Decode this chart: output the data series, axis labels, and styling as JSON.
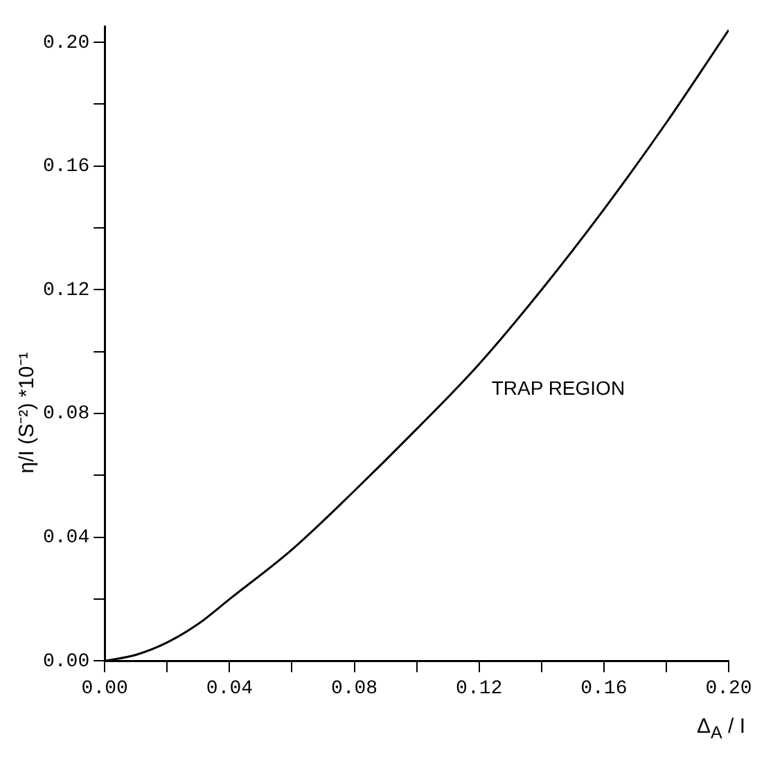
{
  "chart_data": {
    "type": "line",
    "xlabel": "Δ$_{A}$ / I",
    "ylabel": "η/I  (S⁻²)  *10⁻¹",
    "annotations": [
      "TRAP REGION"
    ],
    "x": [
      0,
      0.01,
      0.02,
      0.03,
      0.04,
      0.06,
      0.08,
      0.1,
      0.12,
      0.14,
      0.16,
      0.18,
      0.2
    ],
    "series": [
      {
        "color": "#000000",
        "values": [
          0,
          0.002,
          0.006,
          0.012,
          0.02,
          0.036,
          0.055,
          0.075,
          0.096,
          0.12,
          0.146,
          0.174,
          0.204
        ]
      }
    ],
    "xlim": [
      0,
      0.2
    ],
    "ylim": [
      0,
      0.205
    ],
    "xticks": [
      {
        "value": 0,
        "label": "0.00"
      },
      {
        "value": 0.02,
        "label": null
      },
      0.04,
      {
        "value": 0.06,
        "label": null
      },
      0.08,
      {
        "value": 0.1,
        "label": null
      },
      0.12,
      {
        "value": 0.14,
        "label": null
      },
      0.16,
      {
        "value": 0.18,
        "label": null
      },
      {
        "value": 0.2,
        "label": "0.20"
      }
    ],
    "yticks": [
      {
        "value": 0,
        "label": "0.00"
      },
      {
        "value": 0.02,
        "label": null
      },
      0.04,
      {
        "value": 0.06,
        "label": null
      },
      0.08,
      {
        "value": 0.1,
        "label": null
      },
      0.12,
      {
        "value": 0.14,
        "label": null
      },
      0.16,
      {
        "value": 0.18,
        "label": null
      },
      {
        "value": 0.2,
        "label": "0.20"
      }
    ],
    "grid": false,
    "legend": false,
    "marker": "none",
    "line_style": "solid"
  }
}
